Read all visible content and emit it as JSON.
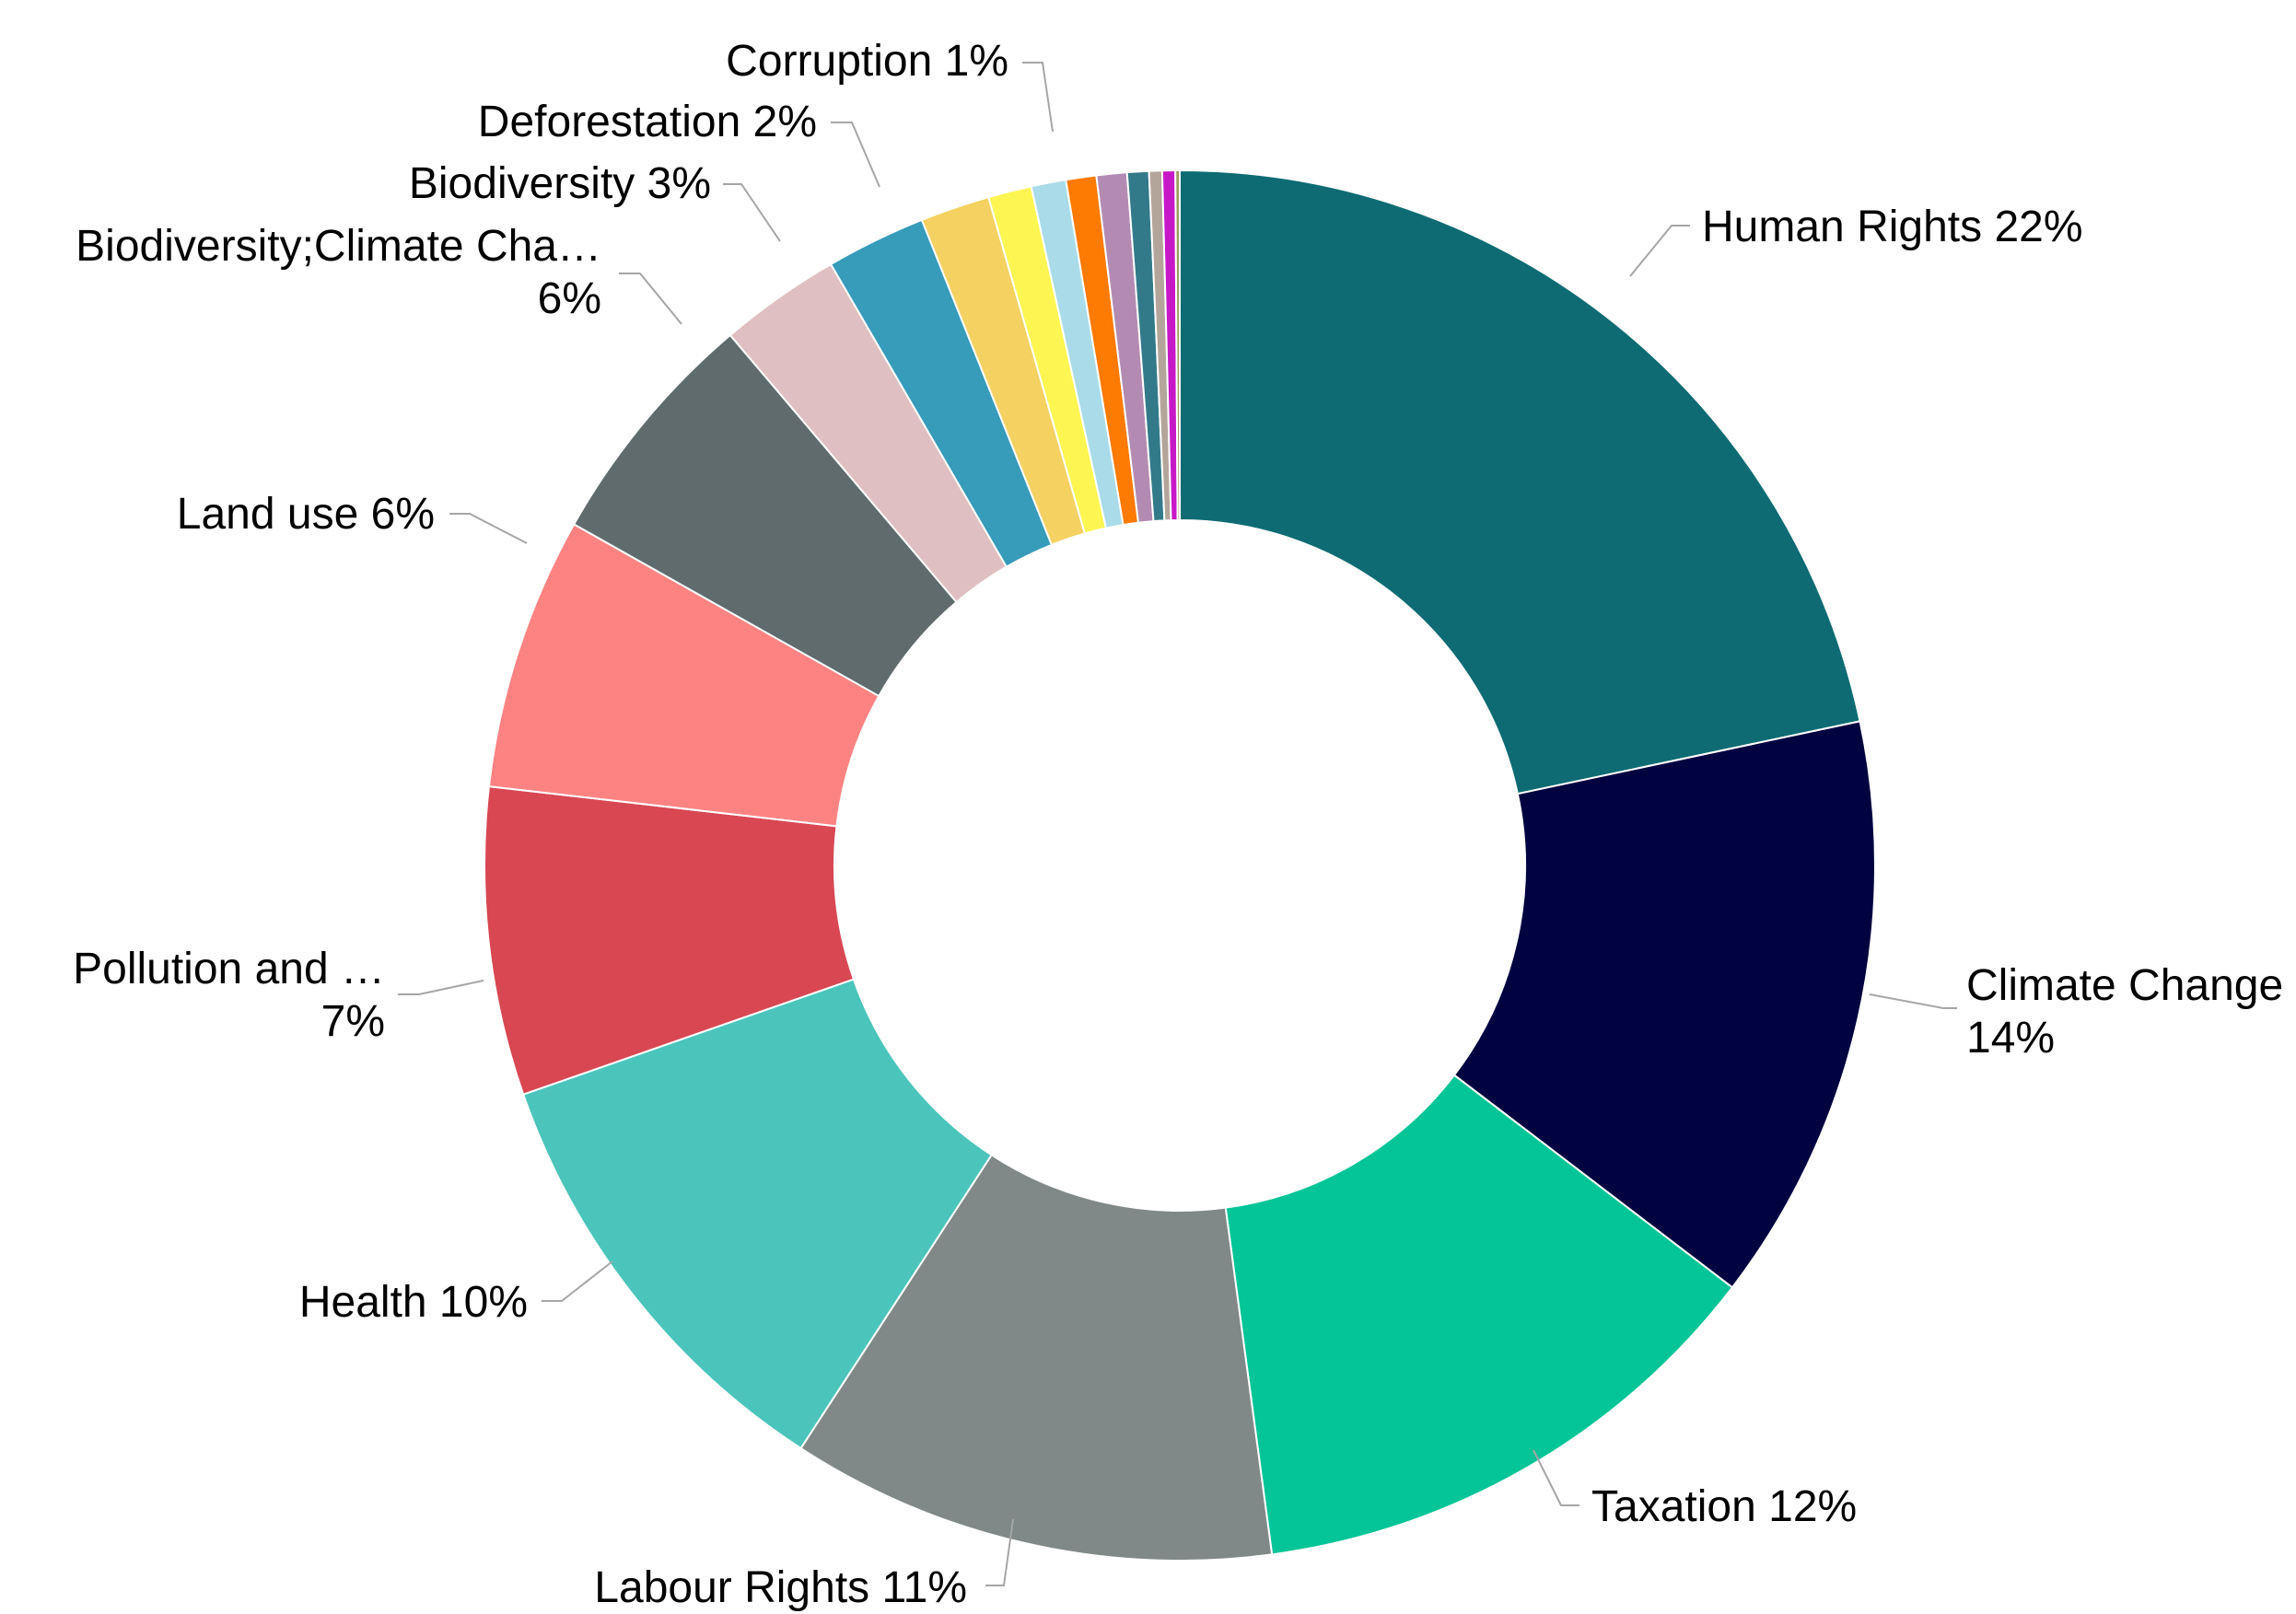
{
  "chart_data": {
    "type": "pie",
    "style": "donut",
    "title": "",
    "slices": [
      {
        "label": "Human Rights",
        "value": 21.5,
        "pct_label": "22%",
        "color": "#0e6b73"
      },
      {
        "label": "Climate Change",
        "value": 13.6,
        "pct_label": "14%",
        "color": "#000340"
      },
      {
        "label": "Taxation",
        "value": 12.4,
        "pct_label": "12%",
        "color": "#03c597"
      },
      {
        "label": "Labour Rights",
        "value": 11.2,
        "pct_label": "11%",
        "color": "#808888"
      },
      {
        "label": "Health",
        "value": 10.4,
        "pct_label": "10%",
        "color": "#4bc5bb"
      },
      {
        "label": "Pollution and …",
        "value": 7.1,
        "pct_label": "7%",
        "color": "#d84752"
      },
      {
        "label": "Land use",
        "value": 6.3,
        "pct_label": "6%",
        "color": "#fd8383"
      },
      {
        "label": "Biodiversity;Climate Cha…",
        "value": 5.6,
        "pct_label": "6%",
        "color": "#5f6b6c"
      },
      {
        "label": "Biodiversity",
        "value": 2.8,
        "pct_label": "3%",
        "color": "#dfbfc1"
      },
      {
        "label": "Deforestation",
        "value": 2.3,
        "pct_label": "2%",
        "color": "#379bba"
      },
      {
        "label": "",
        "value": 1.6,
        "pct_label": "",
        "color": "#f4d160"
      },
      {
        "label": "",
        "value": 1.0,
        "pct_label": "",
        "color": "#fdf552"
      },
      {
        "label": "Corruption",
        "value": 0.8,
        "pct_label": "1%",
        "color": "#a9dbe9"
      },
      {
        "label": "",
        "value": 0.7,
        "pct_label": "",
        "color": "#fd7a03"
      },
      {
        "label": "",
        "value": 0.7,
        "pct_label": "",
        "color": "#b38bb2"
      },
      {
        "label": "",
        "value": 0.5,
        "pct_label": "",
        "color": "#327a8a"
      },
      {
        "label": "",
        "value": 0.3,
        "pct_label": "",
        "color": "#b4a59a"
      },
      {
        "label": "",
        "value": 0.3,
        "pct_label": "",
        "color": "#c718c7"
      },
      {
        "label": "",
        "value": 0.1,
        "pct_label": "",
        "color": "#9e9a5e"
      }
    ]
  }
}
